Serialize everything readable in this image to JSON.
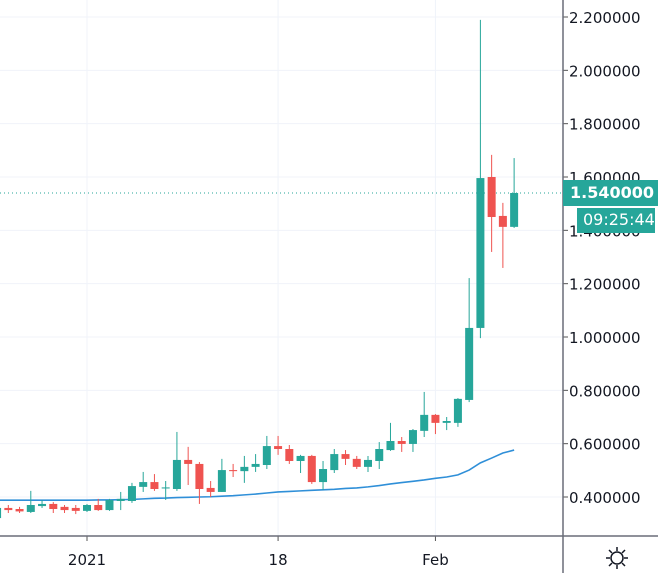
{
  "chart_data": {
    "type": "candlestick",
    "title": "",
    "xlabel": "",
    "ylabel": "",
    "ylim": [
      0.25,
      2.265
    ],
    "grid": true,
    "y_ticks": [
      "0.400000",
      "0.600000",
      "0.800000",
      "1.000000",
      "1.200000",
      "1.400000",
      "1.600000",
      "1.800000",
      "2.000000",
      "2.200000"
    ],
    "x_ticks": [
      {
        "label": "2021",
        "date": "Jan 1"
      },
      {
        "label": "18",
        "date": "Jan 18"
      },
      {
        "label": "Feb",
        "date": "Feb 1"
      }
    ],
    "colors": {
      "up": "#26a69a",
      "down": "#ef5350",
      "moving_average": "#2f8fd8",
      "grid": "#f0f3fa"
    },
    "candles": [
      {
        "date": "Dec 24",
        "o": 0.321,
        "h": 0.359,
        "l": 0.321,
        "c": 0.359
      },
      {
        "date": "Dec 25",
        "o": 0.359,
        "h": 0.37,
        "l": 0.34,
        "c": 0.351
      },
      {
        "date": "Dec 26",
        "o": 0.355,
        "h": 0.363,
        "l": 0.34,
        "c": 0.346
      },
      {
        "date": "Dec 27",
        "o": 0.344,
        "h": 0.423,
        "l": 0.34,
        "c": 0.37
      },
      {
        "date": "Dec 28",
        "o": 0.366,
        "h": 0.389,
        "l": 0.359,
        "c": 0.374
      },
      {
        "date": "Dec 29",
        "o": 0.374,
        "h": 0.381,
        "l": 0.34,
        "c": 0.355
      },
      {
        "date": "Dec 30",
        "o": 0.363,
        "h": 0.37,
        "l": 0.34,
        "c": 0.351
      },
      {
        "date": "Dec 31",
        "o": 0.359,
        "h": 0.37,
        "l": 0.336,
        "c": 0.348
      },
      {
        "date": "Jan 1",
        "o": 0.348,
        "h": 0.374,
        "l": 0.344,
        "c": 0.37
      },
      {
        "date": "Jan 2",
        "o": 0.37,
        "h": 0.393,
        "l": 0.348,
        "c": 0.351
      },
      {
        "date": "Jan 3",
        "o": 0.351,
        "h": 0.393,
        "l": 0.348,
        "c": 0.389
      },
      {
        "date": "Jan 4",
        "o": 0.385,
        "h": 0.419,
        "l": 0.351,
        "c": 0.393
      },
      {
        "date": "Jan 5",
        "o": 0.385,
        "h": 0.453,
        "l": 0.378,
        "c": 0.441
      },
      {
        "date": "Jan 6",
        "o": 0.438,
        "h": 0.494,
        "l": 0.419,
        "c": 0.456
      },
      {
        "date": "Jan 7",
        "o": 0.456,
        "h": 0.486,
        "l": 0.423,
        "c": 0.43
      },
      {
        "date": "Jan 8",
        "o": 0.432,
        "h": 0.46,
        "l": 0.389,
        "c": 0.436
      },
      {
        "date": "Jan 9",
        "o": 0.43,
        "h": 0.644,
        "l": 0.423,
        "c": 0.539
      },
      {
        "date": "Jan 10",
        "o": 0.539,
        "h": 0.588,
        "l": 0.445,
        "c": 0.524
      },
      {
        "date": "Jan 11",
        "o": 0.524,
        "h": 0.531,
        "l": 0.374,
        "c": 0.43
      },
      {
        "date": "Jan 12",
        "o": 0.434,
        "h": 0.46,
        "l": 0.4,
        "c": 0.419
      },
      {
        "date": "Jan 13",
        "o": 0.419,
        "h": 0.543,
        "l": 0.419,
        "c": 0.501
      },
      {
        "date": "Jan 14",
        "o": 0.501,
        "h": 0.524,
        "l": 0.475,
        "c": 0.497
      },
      {
        "date": "Jan 15",
        "o": 0.497,
        "h": 0.554,
        "l": 0.453,
        "c": 0.513
      },
      {
        "date": "Jan 16",
        "o": 0.513,
        "h": 0.561,
        "l": 0.494,
        "c": 0.524
      },
      {
        "date": "Jan 17",
        "o": 0.52,
        "h": 0.629,
        "l": 0.505,
        "c": 0.591
      },
      {
        "date": "Jan 18",
        "o": 0.591,
        "h": 0.629,
        "l": 0.558,
        "c": 0.58
      },
      {
        "date": "Jan 19",
        "o": 0.58,
        "h": 0.595,
        "l": 0.524,
        "c": 0.535
      },
      {
        "date": "Jan 20",
        "o": 0.535,
        "h": 0.558,
        "l": 0.49,
        "c": 0.554
      },
      {
        "date": "Jan 21",
        "o": 0.554,
        "h": 0.558,
        "l": 0.449,
        "c": 0.456
      },
      {
        "date": "Jan 22",
        "o": 0.456,
        "h": 0.535,
        "l": 0.426,
        "c": 0.505
      },
      {
        "date": "Jan 23",
        "o": 0.501,
        "h": 0.58,
        "l": 0.49,
        "c": 0.561
      },
      {
        "date": "Jan 24",
        "o": 0.561,
        "h": 0.576,
        "l": 0.52,
        "c": 0.543
      },
      {
        "date": "Jan 25",
        "o": 0.543,
        "h": 0.554,
        "l": 0.505,
        "c": 0.513
      },
      {
        "date": "Jan 26",
        "o": 0.513,
        "h": 0.554,
        "l": 0.494,
        "c": 0.539
      },
      {
        "date": "Jan 27",
        "o": 0.535,
        "h": 0.606,
        "l": 0.505,
        "c": 0.58
      },
      {
        "date": "Jan 28",
        "o": 0.576,
        "h": 0.678,
        "l": 0.573,
        "c": 0.61
      },
      {
        "date": "Jan 29",
        "o": 0.61,
        "h": 0.625,
        "l": 0.569,
        "c": 0.599
      },
      {
        "date": "Jan 30",
        "o": 0.599,
        "h": 0.655,
        "l": 0.569,
        "c": 0.651
      },
      {
        "date": "Jan 31",
        "o": 0.648,
        "h": 0.794,
        "l": 0.625,
        "c": 0.708
      },
      {
        "date": "Feb 1",
        "o": 0.708,
        "h": 0.711,
        "l": 0.636,
        "c": 0.678
      },
      {
        "date": "Feb 2",
        "o": 0.678,
        "h": 0.7,
        "l": 0.651,
        "c": 0.685
      },
      {
        "date": "Feb 3",
        "o": 0.678,
        "h": 0.771,
        "l": 0.663,
        "c": 0.768
      },
      {
        "date": "Feb 4",
        "o": 0.764,
        "h": 1.221,
        "l": 0.756,
        "c": 1.034
      },
      {
        "date": "Feb 5",
        "o": 1.034,
        "h": 2.189,
        "l": 0.996,
        "c": 1.596
      },
      {
        "date": "Feb 6",
        "o": 1.6,
        "h": 1.683,
        "l": 1.319,
        "c": 1.45
      },
      {
        "date": "Feb 7",
        "o": 1.454,
        "h": 1.503,
        "l": 1.259,
        "c": 1.413
      },
      {
        "date": "Feb 8",
        "o": 1.413,
        "h": 1.671,
        "l": 1.409,
        "c": 1.54
      }
    ],
    "moving_average": [
      0.388,
      0.388,
      0.388,
      0.388,
      0.388,
      0.388,
      0.388,
      0.388,
      0.388,
      0.389,
      0.389,
      0.39,
      0.391,
      0.393,
      0.395,
      0.396,
      0.398,
      0.399,
      0.4,
      0.401,
      0.403,
      0.405,
      0.408,
      0.411,
      0.415,
      0.419,
      0.421,
      0.423,
      0.425,
      0.427,
      0.429,
      0.432,
      0.434,
      0.438,
      0.443,
      0.449,
      0.454,
      0.459,
      0.464,
      0.47,
      0.475,
      0.483,
      0.501,
      0.528,
      0.546,
      0.565,
      0.576
    ],
    "last_price": 1.54
  },
  "price_tag": {
    "value": "1.540000",
    "countdown": "09:25:44"
  },
  "settings_icon": "gear-icon"
}
